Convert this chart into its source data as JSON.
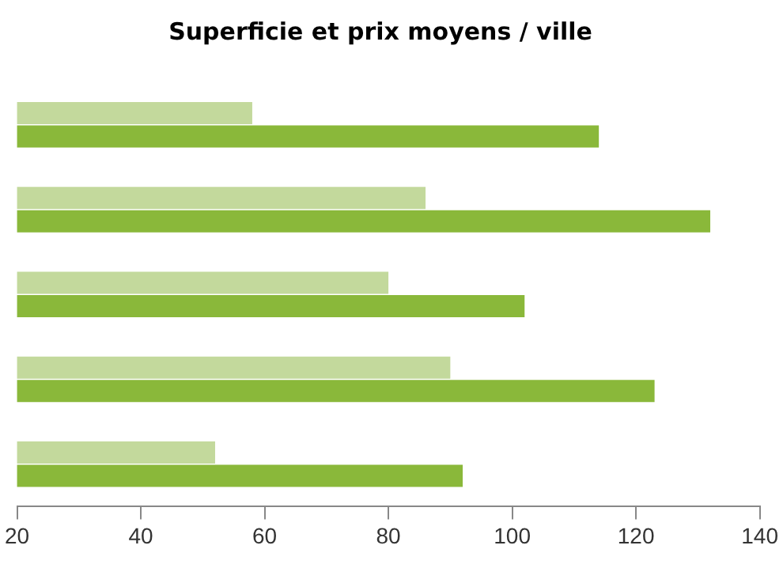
{
  "chart_data": {
    "type": "bar",
    "orientation": "horizontal",
    "title": "Superficie et prix moyens / ville",
    "categories": [
      null,
      null,
      null,
      null,
      null
    ],
    "series": [
      {
        "color": "#c3d99c",
        "values": [
          58,
          86,
          80,
          90,
          52
        ]
      },
      {
        "color": "#8ab83a",
        "values": [
          114,
          132,
          102,
          123,
          92
        ]
      }
    ],
    "xlim": [
      20,
      140
    ],
    "xticks": [
      20,
      40,
      60,
      80,
      100,
      120,
      140
    ],
    "grid": false,
    "legend": false
  }
}
